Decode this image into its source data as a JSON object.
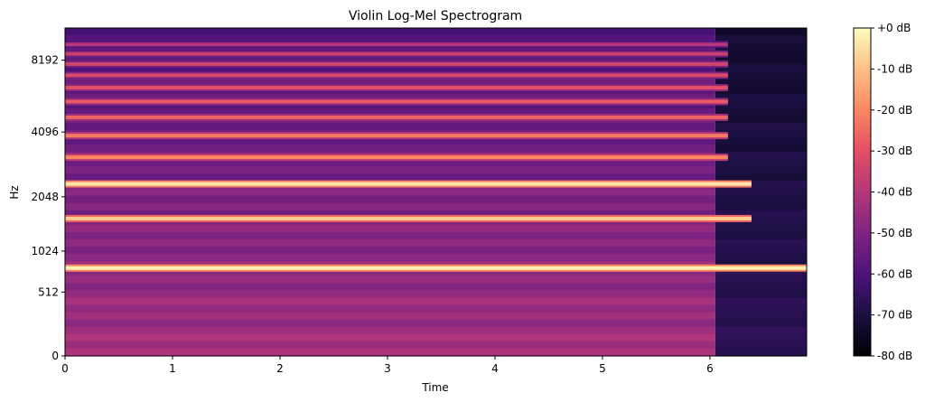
{
  "chart_data": {
    "type": "heatmap",
    "title": "Violin Log-Mel Spectrogram",
    "xlabel": "Time",
    "ylabel": "Hz",
    "xlim": [
      0,
      6.9
    ],
    "x_ticks": [
      0,
      1,
      2,
      3,
      4,
      5,
      6
    ],
    "y_scale": "mel",
    "y_ticks": [
      0,
      512,
      1024,
      2048,
      4096,
      8192
    ],
    "y_tick_labels": [
      "0",
      "512",
      "1024",
      "2048",
      "4096",
      "8192"
    ],
    "note_end_time": 6.05,
    "harmonics_hz": [
      790,
      1580,
      2370,
      3160,
      3950,
      4740,
      5530,
      6320,
      7110,
      7900,
      8690,
      9480
    ],
    "harmonic_levels_db": [
      -2,
      -8,
      -4,
      -20,
      -22,
      -26,
      -28,
      -30,
      -32,
      -34,
      -36,
      -40
    ],
    "colorbar": {
      "range_db": [
        -80,
        0
      ],
      "ticks": [
        0,
        -10,
        -20,
        -30,
        -40,
        -50,
        -60,
        -70,
        -80
      ],
      "tick_labels": [
        "+0 dB",
        "-10 dB",
        "-20 dB",
        "-30 dB",
        "-40 dB",
        "-50 dB",
        "-60 dB",
        "-70 dB",
        "-80 dB"
      ],
      "colormap": "magma"
    }
  }
}
